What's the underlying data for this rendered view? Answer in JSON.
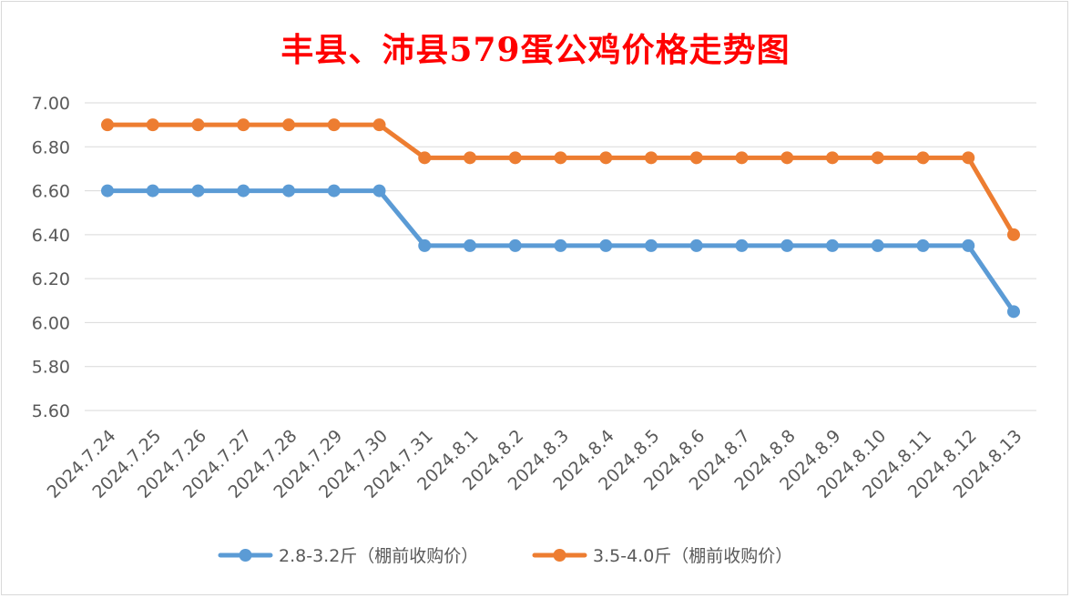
{
  "chart_data": {
    "type": "line",
    "title": "丰县、沛县579蛋公鸡价格走势图",
    "xlabel": "",
    "ylabel": "",
    "ylim": [
      5.6,
      7.0
    ],
    "y_ticks": [
      "7.00",
      "6.80",
      "6.60",
      "6.40",
      "6.20",
      "6.00",
      "5.80",
      "5.60"
    ],
    "grid": true,
    "legend_position": "bottom",
    "categories": [
      "2024.7.24",
      "2024.7.25",
      "2024.7.26",
      "2024.7.27",
      "2024.7.28",
      "2024.7.29",
      "2024.7.30",
      "2024.7.31",
      "2024.8.1",
      "2024.8.2",
      "2024.8.3",
      "2024.8.4",
      "2024.8.5",
      "2024.8.6",
      "2024.8.7",
      "2024.8.8",
      "2024.8.9",
      "2024.8.10",
      "2024.8.11",
      "2024.8.12",
      "2024.8.13"
    ],
    "series": [
      {
        "name": "2.8-3.2斤（棚前收购价）",
        "color": "#5b9bd5",
        "values": [
          6.6,
          6.6,
          6.6,
          6.6,
          6.6,
          6.6,
          6.6,
          6.35,
          6.35,
          6.35,
          6.35,
          6.35,
          6.35,
          6.35,
          6.35,
          6.35,
          6.35,
          6.35,
          6.35,
          6.35,
          6.05
        ]
      },
      {
        "name": "3.5-4.0斤（棚前收购价）",
        "color": "#ed7d31",
        "values": [
          6.9,
          6.9,
          6.9,
          6.9,
          6.9,
          6.9,
          6.9,
          6.75,
          6.75,
          6.75,
          6.75,
          6.75,
          6.75,
          6.75,
          6.75,
          6.75,
          6.75,
          6.75,
          6.75,
          6.75,
          6.4
        ]
      }
    ]
  }
}
